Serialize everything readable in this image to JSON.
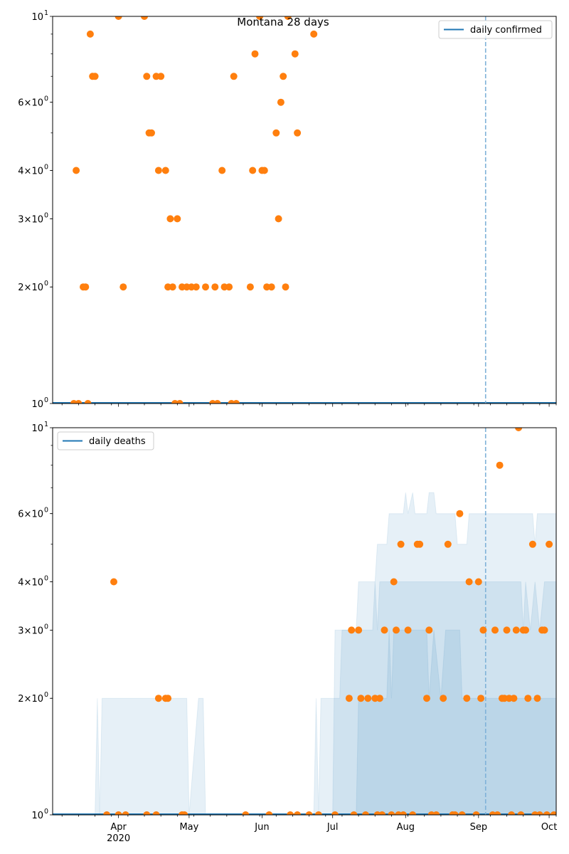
{
  "chart_data": [
    {
      "type": "scatter",
      "title": "Montana 28 days",
      "legend": {
        "label": "daily confirmed",
        "placement": "top-right"
      },
      "yscale": "log",
      "ylim": [
        1,
        10
      ],
      "ytick_labels": [
        {
          "value": 10,
          "base": "10",
          "exp": "1",
          "mult": ""
        },
        {
          "value": 6,
          "base": "10",
          "exp": "0",
          "mult": "6×"
        },
        {
          "value": 4,
          "base": "10",
          "exp": "0",
          "mult": "4×"
        },
        {
          "value": 3,
          "base": "10",
          "exp": "0",
          "mult": "3×"
        },
        {
          "value": 2,
          "base": "10",
          "exp": "0",
          "mult": "2×"
        },
        {
          "value": 1,
          "base": "10",
          "exp": "0",
          "mult": ""
        }
      ],
      "xlim": [
        "2020-03-04",
        "2020-10-04"
      ],
      "vline_date": "2020-09-04",
      "line_value": 1,
      "points": [
        [
          "2020-03-13",
          1
        ],
        [
          "2020-03-14",
          4
        ],
        [
          "2020-03-15",
          1
        ],
        [
          "2020-03-17",
          2
        ],
        [
          "2020-03-18",
          2
        ],
        [
          "2020-03-19",
          1
        ],
        [
          "2020-03-20",
          9
        ],
        [
          "2020-03-21",
          7
        ],
        [
          "2020-03-22",
          7
        ],
        [
          "2020-04-01",
          10
        ],
        [
          "2020-04-03",
          2
        ],
        [
          "2020-04-12",
          10
        ],
        [
          "2020-04-13",
          7
        ],
        [
          "2020-04-14",
          5
        ],
        [
          "2020-04-15",
          5
        ],
        [
          "2020-04-17",
          7
        ],
        [
          "2020-04-18",
          4
        ],
        [
          "2020-04-19",
          7
        ],
        [
          "2020-04-21",
          4
        ],
        [
          "2020-04-22",
          2
        ],
        [
          "2020-04-23",
          3
        ],
        [
          "2020-04-24",
          2
        ],
        [
          "2020-04-25",
          1
        ],
        [
          "2020-04-26",
          3
        ],
        [
          "2020-04-27",
          1
        ],
        [
          "2020-04-28",
          2
        ],
        [
          "2020-04-30",
          2
        ],
        [
          "2020-05-02",
          2
        ],
        [
          "2020-05-04",
          2
        ],
        [
          "2020-05-08",
          2
        ],
        [
          "2020-05-11",
          1
        ],
        [
          "2020-05-12",
          2
        ],
        [
          "2020-05-13",
          1
        ],
        [
          "2020-05-15",
          4
        ],
        [
          "2020-05-16",
          2
        ],
        [
          "2020-05-18",
          2
        ],
        [
          "2020-05-19",
          1
        ],
        [
          "2020-05-20",
          7
        ],
        [
          "2020-05-21",
          1
        ],
        [
          "2020-05-27",
          2
        ],
        [
          "2020-05-28",
          4
        ],
        [
          "2020-05-29",
          8
        ],
        [
          "2020-05-31",
          10
        ],
        [
          "2020-06-01",
          4
        ],
        [
          "2020-06-02",
          4
        ],
        [
          "2020-06-03",
          2
        ],
        [
          "2020-06-05",
          2
        ],
        [
          "2020-06-07",
          5
        ],
        [
          "2020-06-08",
          3
        ],
        [
          "2020-06-09",
          6
        ],
        [
          "2020-06-10",
          7
        ],
        [
          "2020-06-11",
          2
        ],
        [
          "2020-06-12",
          10
        ],
        [
          "2020-06-15",
          8
        ],
        [
          "2020-06-16",
          5
        ],
        [
          "2020-06-23",
          9
        ]
      ]
    },
    {
      "type": "scatter",
      "title": "",
      "legend": {
        "label": "daily deaths",
        "placement": "top-left"
      },
      "yscale": "log",
      "ylim": [
        1,
        10
      ],
      "ytick_labels": [
        {
          "value": 10,
          "base": "10",
          "exp": "1",
          "mult": ""
        },
        {
          "value": 6,
          "base": "10",
          "exp": "0",
          "mult": "6×"
        },
        {
          "value": 4,
          "base": "10",
          "exp": "0",
          "mult": "4×"
        },
        {
          "value": 3,
          "base": "10",
          "exp": "0",
          "mult": "3×"
        },
        {
          "value": 2,
          "base": "10",
          "exp": "0",
          "mult": "2×"
        },
        {
          "value": 1,
          "base": "10",
          "exp": "0",
          "mult": ""
        }
      ],
      "xlim": [
        "2020-03-04",
        "2020-10-04"
      ],
      "xtick_labels": [
        {
          "date": "2020-04-01",
          "label": "Apr",
          "sub": "2020"
        },
        {
          "date": "2020-05-01",
          "label": "May",
          "sub": ""
        },
        {
          "date": "2020-06-01",
          "label": "Jun",
          "sub": ""
        },
        {
          "date": "2020-07-01",
          "label": "Jul",
          "sub": ""
        },
        {
          "date": "2020-08-01",
          "label": "Aug",
          "sub": ""
        },
        {
          "date": "2020-09-01",
          "label": "Sep",
          "sub": ""
        },
        {
          "date": "2020-10-01",
          "label": "Oct",
          "sub": ""
        }
      ],
      "vline_date": "2020-09-04",
      "line_value": 1,
      "bands": [
        {
          "name": "band-outer",
          "steps": [
            [
              "2020-03-04",
              1
            ],
            [
              "2020-03-22",
              1
            ],
            [
              "2020-03-23",
              2
            ],
            [
              "2020-03-24",
              1
            ],
            [
              "2020-03-25",
              2
            ],
            [
              "2020-04-30",
              2
            ],
            [
              "2020-05-01",
              1
            ],
            [
              "2020-05-05",
              2
            ],
            [
              "2020-05-07",
              2
            ],
            [
              "2020-05-08",
              1
            ],
            [
              "2020-06-23",
              1
            ],
            [
              "2020-06-24",
              2
            ],
            [
              "2020-06-25",
              1
            ],
            [
              "2020-06-26",
              2
            ],
            [
              "2020-07-04",
              2
            ],
            [
              "2020-07-05",
              3
            ],
            [
              "2020-07-11",
              3
            ],
            [
              "2020-07-12",
              4
            ],
            [
              "2020-07-19",
              4
            ],
            [
              "2020-07-20",
              5
            ],
            [
              "2020-07-24",
              5
            ],
            [
              "2020-07-25",
              6
            ],
            [
              "2020-07-31",
              6
            ],
            [
              "2020-08-01",
              6.8
            ],
            [
              "2020-08-02",
              6
            ],
            [
              "2020-08-04",
              6.8
            ],
            [
              "2020-08-05",
              6
            ],
            [
              "2020-08-10",
              6
            ],
            [
              "2020-08-11",
              6.8
            ],
            [
              "2020-08-13",
              6.8
            ],
            [
              "2020-08-14",
              6
            ],
            [
              "2020-08-22",
              6
            ],
            [
              "2020-08-23",
              5
            ],
            [
              "2020-08-27",
              5
            ],
            [
              "2020-08-28",
              6
            ],
            [
              "2020-09-24",
              6
            ],
            [
              "2020-09-25",
              5
            ],
            [
              "2020-09-26",
              6
            ],
            [
              "2020-10-04",
              6
            ]
          ]
        },
        {
          "name": "band-mid",
          "steps": [
            [
              "2020-07-01",
              1
            ],
            [
              "2020-07-02",
              3
            ],
            [
              "2020-07-18",
              3
            ],
            [
              "2020-07-19",
              4
            ],
            [
              "2020-07-20",
              3
            ],
            [
              "2020-07-21",
              4
            ],
            [
              "2020-08-31",
              4
            ],
            [
              "2020-09-01",
              4
            ],
            [
              "2020-09-19",
              4
            ],
            [
              "2020-09-20",
              3
            ],
            [
              "2020-09-21",
              4
            ],
            [
              "2020-09-23",
              3
            ],
            [
              "2020-09-25",
              4
            ],
            [
              "2020-09-27",
              3
            ],
            [
              "2020-09-29",
              4
            ],
            [
              "2020-10-04",
              4
            ]
          ]
        },
        {
          "name": "band-inner",
          "steps": [
            [
              "2020-07-11",
              1
            ],
            [
              "2020-07-12",
              2
            ],
            [
              "2020-07-24",
              2
            ],
            [
              "2020-07-25",
              3
            ],
            [
              "2020-07-26",
              2
            ],
            [
              "2020-07-27",
              3
            ],
            [
              "2020-08-10",
              3
            ],
            [
              "2020-08-11",
              2
            ],
            [
              "2020-08-13",
              3
            ],
            [
              "2020-08-16",
              2
            ],
            [
              "2020-08-18",
              3
            ],
            [
              "2020-08-24",
              3
            ],
            [
              "2020-08-25",
              2
            ],
            [
              "2020-10-04",
              2
            ]
          ]
        }
      ],
      "points": [
        [
          "2020-03-27",
          1
        ],
        [
          "2020-03-30",
          4
        ],
        [
          "2020-04-01",
          1
        ],
        [
          "2020-04-04",
          1
        ],
        [
          "2020-04-13",
          1
        ],
        [
          "2020-04-17",
          1
        ],
        [
          "2020-04-18",
          2
        ],
        [
          "2020-04-21",
          2
        ],
        [
          "2020-04-22",
          2
        ],
        [
          "2020-04-28",
          1
        ],
        [
          "2020-04-29",
          1
        ],
        [
          "2020-05-25",
          1
        ],
        [
          "2020-06-04",
          1
        ],
        [
          "2020-06-13",
          1
        ],
        [
          "2020-06-16",
          1
        ],
        [
          "2020-06-21",
          1
        ],
        [
          "2020-06-25",
          1
        ],
        [
          "2020-07-02",
          1
        ],
        [
          "2020-07-08",
          2
        ],
        [
          "2020-07-09",
          3
        ],
        [
          "2020-07-10",
          1
        ],
        [
          "2020-07-12",
          3
        ],
        [
          "2020-07-13",
          2
        ],
        [
          "2020-07-15",
          1
        ],
        [
          "2020-07-16",
          2
        ],
        [
          "2020-07-19",
          2
        ],
        [
          "2020-07-20",
          1
        ],
        [
          "2020-07-21",
          2
        ],
        [
          "2020-07-22",
          1
        ],
        [
          "2020-07-23",
          3
        ],
        [
          "2020-07-26",
          1
        ],
        [
          "2020-07-27",
          4
        ],
        [
          "2020-07-28",
          3
        ],
        [
          "2020-07-29",
          1
        ],
        [
          "2020-07-30",
          5
        ],
        [
          "2020-07-31",
          1
        ],
        [
          "2020-08-02",
          3
        ],
        [
          "2020-08-04",
          1
        ],
        [
          "2020-08-06",
          5
        ],
        [
          "2020-08-07",
          5
        ],
        [
          "2020-08-10",
          2
        ],
        [
          "2020-08-11",
          3
        ],
        [
          "2020-08-12",
          1
        ],
        [
          "2020-08-14",
          1
        ],
        [
          "2020-08-17",
          2
        ],
        [
          "2020-08-19",
          5
        ],
        [
          "2020-08-21",
          1
        ],
        [
          "2020-08-22",
          1
        ],
        [
          "2020-08-24",
          6
        ],
        [
          "2020-08-25",
          1
        ],
        [
          "2020-08-27",
          2
        ],
        [
          "2020-08-28",
          4
        ],
        [
          "2020-08-31",
          1
        ],
        [
          "2020-09-01",
          4
        ],
        [
          "2020-09-02",
          2
        ],
        [
          "2020-09-03",
          3
        ],
        [
          "2020-09-07",
          1
        ],
        [
          "2020-09-08",
          3
        ],
        [
          "2020-09-09",
          1
        ],
        [
          "2020-09-10",
          8
        ],
        [
          "2020-09-11",
          2
        ],
        [
          "2020-09-12",
          2
        ],
        [
          "2020-09-13",
          3
        ],
        [
          "2020-09-14",
          2
        ],
        [
          "2020-09-15",
          1
        ],
        [
          "2020-09-16",
          2
        ],
        [
          "2020-09-17",
          3
        ],
        [
          "2020-09-18",
          10
        ],
        [
          "2020-09-19",
          1
        ],
        [
          "2020-09-20",
          3
        ],
        [
          "2020-09-21",
          3
        ],
        [
          "2020-09-22",
          2
        ],
        [
          "2020-09-24",
          5
        ],
        [
          "2020-09-25",
          1
        ],
        [
          "2020-09-26",
          2
        ],
        [
          "2020-09-27",
          1
        ],
        [
          "2020-09-28",
          3
        ],
        [
          "2020-09-29",
          3
        ],
        [
          "2020-09-30",
          1
        ],
        [
          "2020-10-01",
          5
        ],
        [
          "2020-10-03",
          1
        ]
      ]
    }
  ],
  "colors": {
    "points": "#ff7f0e",
    "line": "#1f77b4",
    "band": "#1f77b4",
    "vline": "#7fb2d8"
  }
}
